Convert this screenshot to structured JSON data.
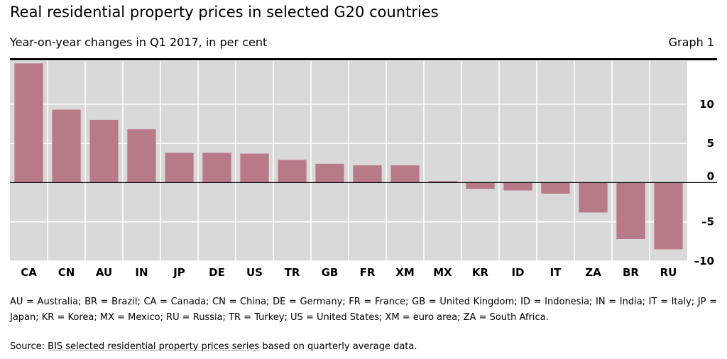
{
  "header": {
    "title": "Real residential property prices in selected G20 countries",
    "subtitle": "Year-on-year changes in Q1 2017, in per cent",
    "graph_label": "Graph 1"
  },
  "colors": {
    "bar": "#b97a88",
    "plot_bg": "#d9d9d9",
    "gridline": "#ffffff",
    "zero_line": "#000000"
  },
  "chart_data": {
    "type": "bar",
    "categories": [
      "CA",
      "CN",
      "AU",
      "IN",
      "JP",
      "DE",
      "US",
      "TR",
      "GB",
      "FR",
      "XM",
      "MX",
      "KR",
      "ID",
      "IT",
      "ZA",
      "BR",
      "RU"
    ],
    "values": [
      15.2,
      9.3,
      8.0,
      6.8,
      3.8,
      3.8,
      3.7,
      2.9,
      2.4,
      2.2,
      2.2,
      0.2,
      -0.8,
      -1.0,
      -1.4,
      -3.8,
      -7.2,
      -8.5
    ],
    "ylim": [
      -10,
      15.5
    ],
    "yticks": [
      10,
      5,
      0,
      -5,
      -10
    ],
    "ytick_labels": [
      "10",
      "5",
      "0",
      "–5",
      "–10"
    ],
    "ylabel_side": "right",
    "grid": true
  },
  "footer": {
    "notes": "AU = Australia; BR = Brazil; CA = Canada; CN = China; DE = Germany; FR = France; GB = United Kingdom; ID = Indonesia; IN = India; IT = Italy; JP = Japan; KR = Korea; MX = Mexico; RU = Russia; TR = Turkey; US = United States; XM = euro area; ZA = South Africa.",
    "source_prefix": "Source: ",
    "source_link": "BIS selected residential property prices series",
    "source_suffix": " based on quarterly average data."
  }
}
